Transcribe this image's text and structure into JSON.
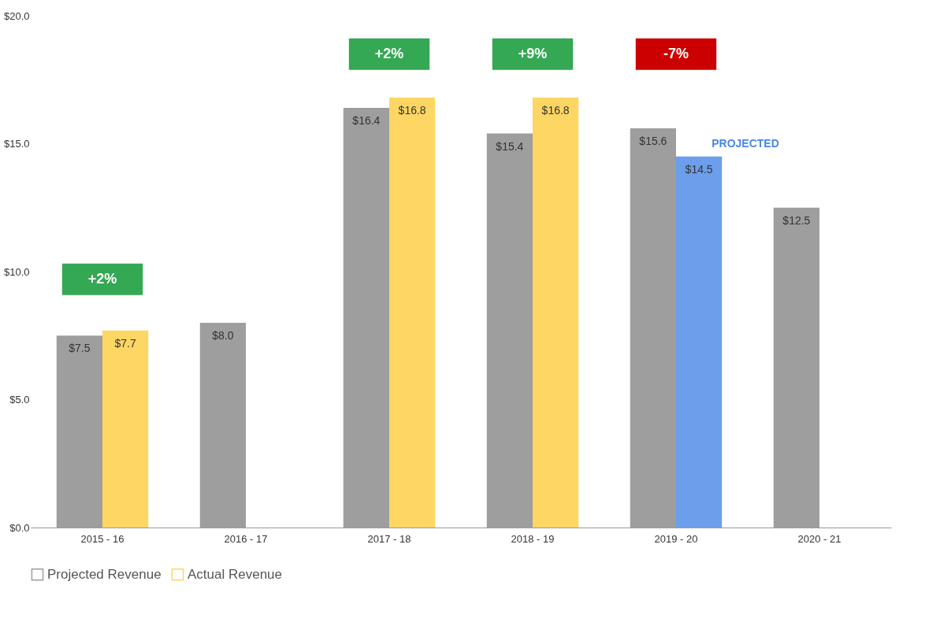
{
  "chart_data": {
    "type": "bar",
    "categories": [
      "2015 - 16",
      "2016 - 17",
      "2017 - 18",
      "2018 - 19",
      "2019 - 20",
      "2020 - 21"
    ],
    "series": [
      {
        "name": "Projected Revenue",
        "color": "#9e9e9e",
        "values": [
          7.5,
          8.0,
          16.4,
          15.4,
          15.6,
          12.5
        ],
        "value_labels": [
          "$7.5",
          "$8.0",
          "$16.4",
          "$15.4",
          "$15.6",
          "$12.5"
        ]
      },
      {
        "name": "Actual Revenue",
        "color": "#fdd663",
        "colors": [
          "#fdd663",
          null,
          "#fdd663",
          "#fdd663",
          "#6d9eeb",
          null
        ],
        "values": [
          7.7,
          null,
          16.8,
          16.8,
          14.5,
          null
        ],
        "value_labels": [
          "$7.7",
          null,
          "$16.8",
          "$16.8",
          "$14.5",
          null
        ]
      }
    ],
    "ylim": [
      0,
      20
    ],
    "yticks": [
      {
        "value": 0,
        "label": "$0.0"
      },
      {
        "value": 5,
        "label": "$5.0"
      },
      {
        "value": 10,
        "label": "$10.0"
      },
      {
        "value": 15,
        "label": "$15.0"
      },
      {
        "value": 20,
        "label": "$20.0"
      }
    ],
    "legend": "bottom",
    "annotations": [
      "+2%",
      "+2%",
      "+9%",
      "-7%",
      "PROJECTED"
    ]
  }
}
